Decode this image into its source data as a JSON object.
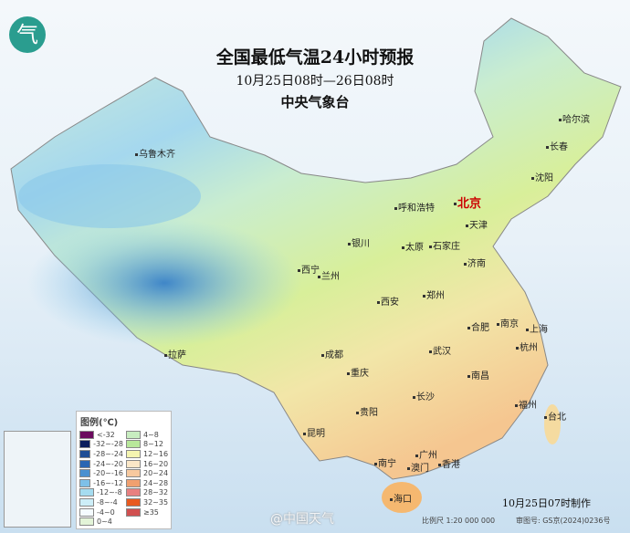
{
  "header": {
    "title": "全国最低气温24小时预报",
    "period": "10月25日08时—26日08时",
    "issuer": "中央气象台",
    "logo_icon": "cma-logo-icon"
  },
  "legend": {
    "title": "图例(℃)",
    "items": [
      {
        "label": "<-32",
        "color": "#6b0a5e"
      },
      {
        "label": "-32~-28",
        "color": "#0c1f5e"
      },
      {
        "label": "-28~-24",
        "color": "#1f4d95"
      },
      {
        "label": "-24~-20",
        "color": "#2a66b3"
      },
      {
        "label": "-20~-16",
        "color": "#4a90d0"
      },
      {
        "label": "-16~-12",
        "color": "#7ec0e8"
      },
      {
        "label": "-12~-8",
        "color": "#a5dcf0"
      },
      {
        "label": "-8~-4",
        "color": "#cdeef8"
      },
      {
        "label": "-4~0",
        "color": "#f5fbff"
      },
      {
        "label": "0~4",
        "color": "#e3f4d8"
      },
      {
        "label": "4~8",
        "color": "#c8edc0"
      },
      {
        "label": "8~12",
        "color": "#b8e89a"
      },
      {
        "label": "12~16",
        "color": "#f5f5b0"
      },
      {
        "label": "16~20",
        "color": "#fbe7c7"
      },
      {
        "label": "20~24",
        "color": "#f7c99f"
      },
      {
        "label": "24~28",
        "color": "#f0a070"
      },
      {
        "label": "28~32",
        "color": "#e88080"
      },
      {
        "label": "32~35",
        "color": "#e85a20"
      },
      {
        "label": "≥35",
        "color": "#d05050"
      }
    ]
  },
  "cities": [
    "乌鲁木齐",
    "哈尔滨",
    "长春",
    "沈阳",
    "呼和浩特",
    "北京",
    "天津",
    "石家庄",
    "太原",
    "银川",
    "西宁",
    "兰州",
    "济南",
    "郑州",
    "西安",
    "合肥",
    "南京",
    "上海",
    "拉萨",
    "成都",
    "武汉",
    "杭州",
    "重庆",
    "长沙",
    "南昌",
    "福州",
    "台北",
    "贵阳",
    "昆明",
    "南宁",
    "广州",
    "香港",
    "澳门",
    "海口"
  ],
  "footer": {
    "made": "10月25日07时制作",
    "scale": "比例尺 1:20 000 000",
    "review": "审图号: GS京(2024)0236号",
    "watermark": "@中国天气"
  }
}
